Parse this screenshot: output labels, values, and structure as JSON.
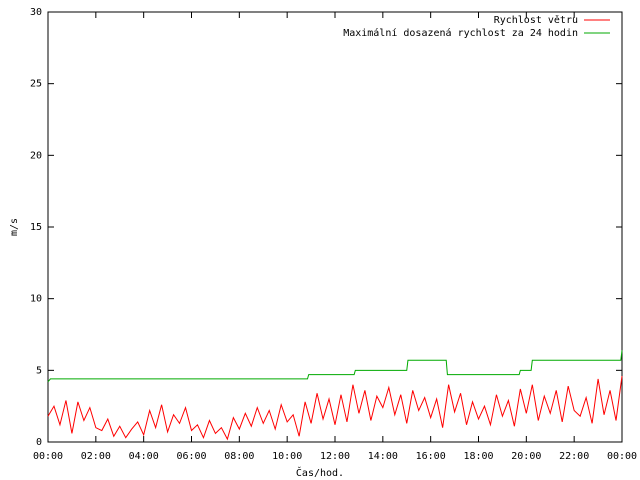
{
  "chart_data": {
    "type": "line",
    "xlabel": "Čas/hod.",
    "ylabel": "m/s",
    "xlim": [
      0,
      24
    ],
    "ylim": [
      0,
      30
    ],
    "xticks": [
      {
        "value": 0,
        "label": "00:00"
      },
      {
        "value": 2,
        "label": "02:00"
      },
      {
        "value": 4,
        "label": "04:00"
      },
      {
        "value": 6,
        "label": "06:00"
      },
      {
        "value": 8,
        "label": "08:00"
      },
      {
        "value": 10,
        "label": "10:00"
      },
      {
        "value": 12,
        "label": "12:00"
      },
      {
        "value": 14,
        "label": "14:00"
      },
      {
        "value": 16,
        "label": "16:00"
      },
      {
        "value": 18,
        "label": "18:00"
      },
      {
        "value": 20,
        "label": "20:00"
      },
      {
        "value": 22,
        "label": "22:00"
      },
      {
        "value": 24,
        "label": "00:00"
      }
    ],
    "yticks": [
      0,
      5,
      10,
      15,
      20,
      25,
      30
    ],
    "legend": "top-right",
    "series": [
      {
        "name": "Rychlost větru",
        "color": "#ff0000",
        "x": [
          0,
          0.25,
          0.5,
          0.75,
          1,
          1.25,
          1.5,
          1.75,
          2,
          2.25,
          2.5,
          2.75,
          3,
          3.25,
          3.5,
          3.75,
          4,
          4.25,
          4.5,
          4.75,
          5,
          5.25,
          5.5,
          5.75,
          6,
          6.25,
          6.5,
          6.75,
          7,
          7.25,
          7.5,
          7.75,
          8,
          8.25,
          8.5,
          8.75,
          9,
          9.25,
          9.5,
          9.75,
          10,
          10.25,
          10.5,
          10.75,
          11,
          11.25,
          11.5,
          11.75,
          12,
          12.25,
          12.5,
          12.75,
          13,
          13.25,
          13.5,
          13.75,
          14,
          14.25,
          14.5,
          14.75,
          15,
          15.25,
          15.5,
          15.75,
          16,
          16.25,
          16.5,
          16.75,
          17,
          17.25,
          17.5,
          17.75,
          18,
          18.25,
          18.5,
          18.75,
          19,
          19.25,
          19.5,
          19.75,
          20,
          20.25,
          20.5,
          20.75,
          21,
          21.25,
          21.5,
          21.75,
          22,
          22.25,
          22.5,
          22.75,
          23,
          23.25,
          23.5,
          23.75,
          24
        ],
        "values": [
          1.8,
          2.5,
          1.2,
          2.9,
          0.6,
          2.8,
          1.5,
          2.4,
          1.0,
          0.8,
          1.6,
          0.4,
          1.1,
          0.3,
          0.9,
          1.4,
          0.5,
          2.2,
          1.0,
          2.6,
          0.7,
          1.9,
          1.3,
          2.4,
          0.8,
          1.2,
          0.3,
          1.5,
          0.6,
          1.0,
          0.2,
          1.7,
          0.9,
          2.0,
          1.1,
          2.4,
          1.3,
          2.2,
          0.9,
          2.6,
          1.4,
          1.9,
          0.4,
          2.8,
          1.3,
          3.4,
          1.6,
          3.0,
          1.2,
          3.3,
          1.4,
          4.0,
          2.0,
          3.6,
          1.5,
          3.2,
          2.4,
          3.8,
          1.9,
          3.3,
          1.3,
          3.6,
          2.2,
          3.1,
          1.7,
          3.0,
          1.0,
          4.0,
          2.1,
          3.4,
          1.2,
          2.8,
          1.6,
          2.5,
          1.2,
          3.3,
          1.8,
          2.9,
          1.1,
          3.7,
          2.0,
          4.0,
          1.5,
          3.2,
          2.0,
          3.6,
          1.4,
          3.9,
          2.2,
          1.8,
          3.1,
          1.3,
          4.4,
          1.9,
          3.6,
          1.5,
          4.6
        ]
      },
      {
        "name": "Maximální dosazená rychlost za 24 hodin",
        "color": "#00aa00",
        "x": [
          0,
          0.1,
          10.85,
          10.9,
          12.8,
          12.85,
          15.0,
          15.05,
          16.65,
          16.7,
          19.7,
          19.75,
          20.2,
          20.25,
          23.95,
          24
        ],
        "values": [
          4.2,
          4.4,
          4.4,
          4.7,
          4.7,
          5.0,
          5.0,
          5.7,
          5.7,
          4.7,
          4.7,
          5.0,
          5.0,
          5.7,
          5.7,
          6.4
        ]
      }
    ]
  }
}
